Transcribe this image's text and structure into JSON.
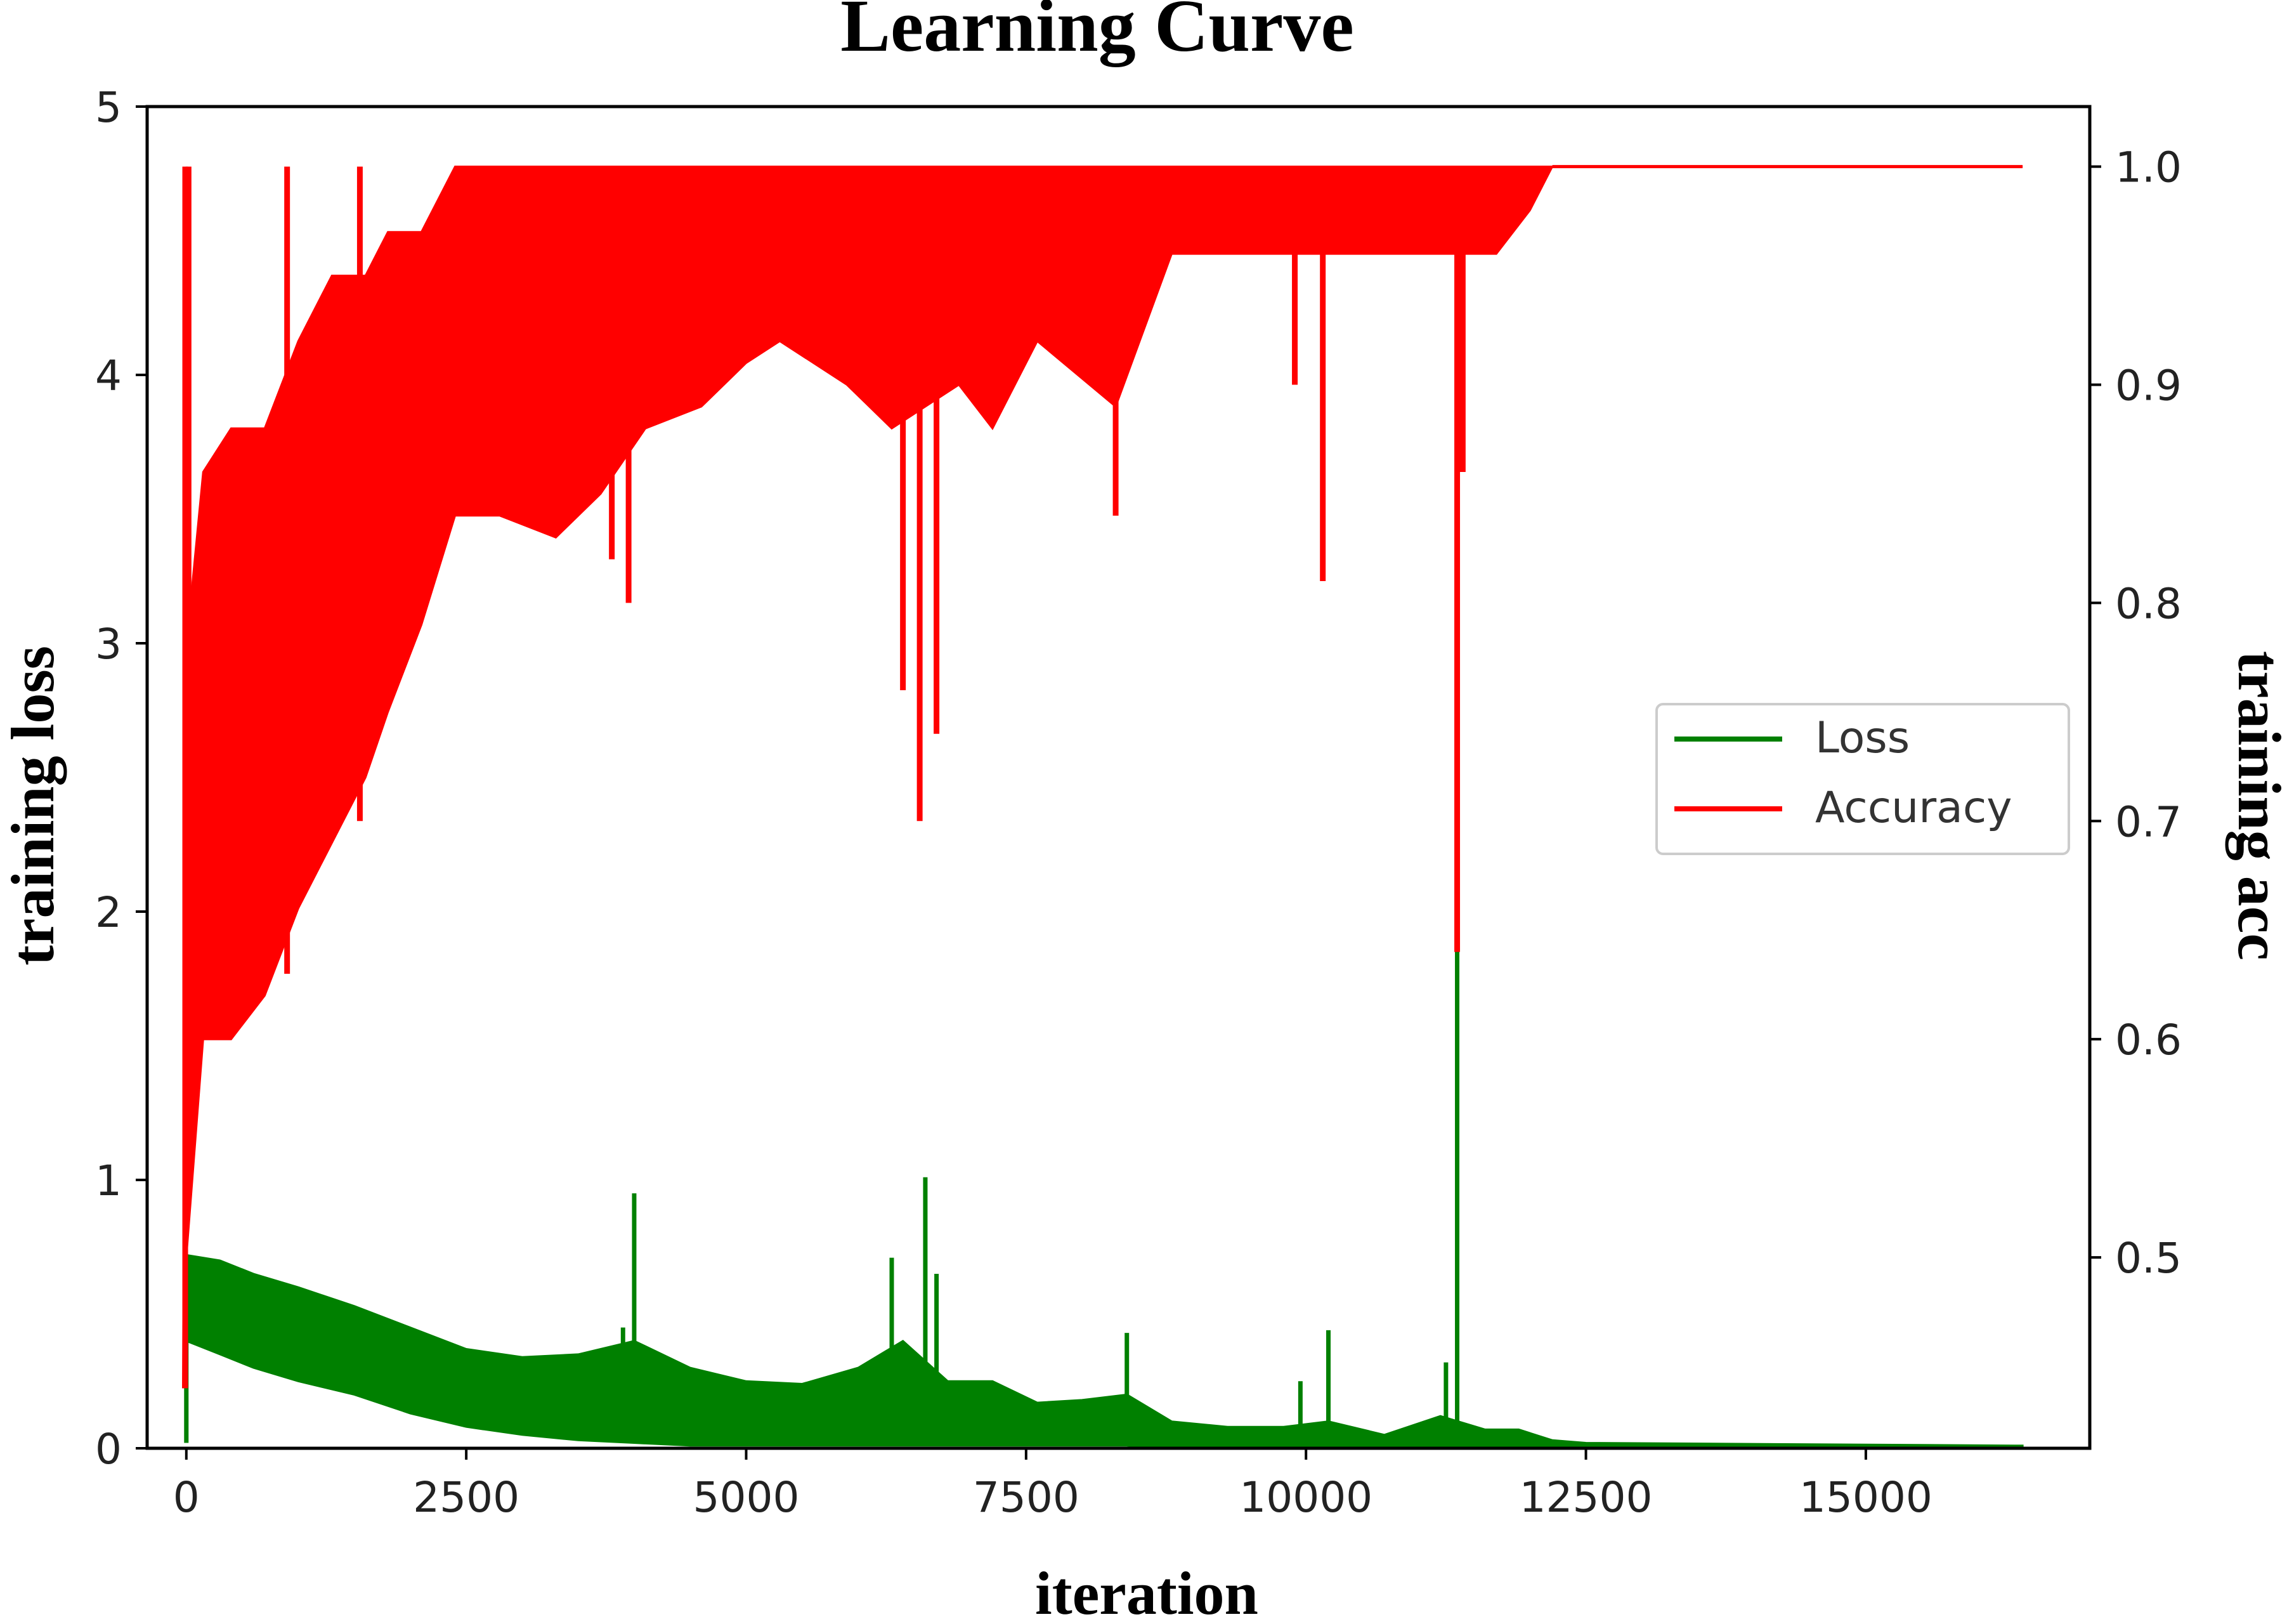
{
  "chart_data": {
    "type": "line",
    "title": "Learning Curve",
    "xlabel": "iteration",
    "ylabel": "training loss",
    "y2label": "training acc",
    "xlim": [
      -350,
      17000
    ],
    "ylim": [
      0,
      5
    ],
    "y2lim": [
      0.4125,
      1.0275
    ],
    "xticks": [
      0,
      2500,
      5000,
      7500,
      10000,
      12500,
      15000
    ],
    "xtick_labels": [
      "0",
      "2500",
      "5000",
      "7500",
      "10000",
      "12500",
      "15000"
    ],
    "yticks": [
      0,
      1,
      2,
      3,
      4,
      5
    ],
    "ytick_labels": [
      "0",
      "1",
      "2",
      "3",
      "4",
      "5"
    ],
    "y2ticks": [
      0.5,
      0.6,
      0.7,
      0.8,
      0.9,
      1.0
    ],
    "y2tick_labels": [
      "0.5",
      "0.6",
      "0.7",
      "0.8",
      "0.9",
      "1.0"
    ],
    "legend_position": "center-right",
    "series": [
      {
        "name": "Loss",
        "axis": "left",
        "color": "#008000",
        "band": [
          {
            "x": 0,
            "lo": 0.4,
            "hi": 0.72
          },
          {
            "x": 300,
            "lo": 0.35,
            "hi": 0.7
          },
          {
            "x": 600,
            "lo": 0.3,
            "hi": 0.65
          },
          {
            "x": 1000,
            "lo": 0.25,
            "hi": 0.6
          },
          {
            "x": 1500,
            "lo": 0.2,
            "hi": 0.53
          },
          {
            "x": 2000,
            "lo": 0.13,
            "hi": 0.45
          },
          {
            "x": 2500,
            "lo": 0.08,
            "hi": 0.37
          },
          {
            "x": 3000,
            "lo": 0.05,
            "hi": 0.34
          },
          {
            "x": 3500,
            "lo": 0.03,
            "hi": 0.35
          },
          {
            "x": 4000,
            "lo": 0.02,
            "hi": 0.4
          },
          {
            "x": 4500,
            "lo": 0.01,
            "hi": 0.3
          },
          {
            "x": 5000,
            "lo": 0.01,
            "hi": 0.25
          },
          {
            "x": 5500,
            "lo": 0.01,
            "hi": 0.24
          },
          {
            "x": 6000,
            "lo": 0.01,
            "hi": 0.3
          },
          {
            "x": 6400,
            "lo": 0.01,
            "hi": 0.4
          },
          {
            "x": 6800,
            "lo": 0.01,
            "hi": 0.25
          },
          {
            "x": 7200,
            "lo": 0.01,
            "hi": 0.25
          },
          {
            "x": 7600,
            "lo": 0.01,
            "hi": 0.17
          },
          {
            "x": 8000,
            "lo": 0.01,
            "hi": 0.18
          },
          {
            "x": 8400,
            "lo": 0.01,
            "hi": 0.2
          },
          {
            "x": 8800,
            "lo": 0.0,
            "hi": 0.1
          },
          {
            "x": 9300,
            "lo": 0.0,
            "hi": 0.08
          },
          {
            "x": 9800,
            "lo": 0.0,
            "hi": 0.08
          },
          {
            "x": 10200,
            "lo": 0.0,
            "hi": 0.1
          },
          {
            "x": 10700,
            "lo": 0.0,
            "hi": 0.05
          },
          {
            "x": 11200,
            "lo": 0.0,
            "hi": 0.12
          },
          {
            "x": 11600,
            "lo": 0.0,
            "hi": 0.07
          },
          {
            "x": 11900,
            "lo": 0.0,
            "hi": 0.07
          },
          {
            "x": 12200,
            "lo": 0.0,
            "hi": 0.03
          },
          {
            "x": 12500,
            "lo": 0.0,
            "hi": 0.02
          },
          {
            "x": 16400,
            "lo": 0.0,
            "hi": 0.01
          }
        ],
        "spikes": [
          {
            "x": 0,
            "y": 0.55
          },
          {
            "x": 3900,
            "y": 0.45
          },
          {
            "x": 4000,
            "y": 0.95
          },
          {
            "x": 6300,
            "y": 0.71
          },
          {
            "x": 6600,
            "y": 1.01
          },
          {
            "x": 6700,
            "y": 0.65
          },
          {
            "x": 8400,
            "y": 0.43
          },
          {
            "x": 9950,
            "y": 0.25
          },
          {
            "x": 10200,
            "y": 0.44
          },
          {
            "x": 11250,
            "y": 0.32
          },
          {
            "x": 11350,
            "y": 1.85
          }
        ]
      },
      {
        "name": "Accuracy",
        "axis": "right",
        "color": "#ff0000",
        "band": [
          {
            "x": -30,
            "lo": 0.44,
            "hi": 0.44
          },
          {
            "x": 0,
            "lo": 0.5,
            "hi": 0.78
          },
          {
            "x": 150,
            "lo": 0.6,
            "hi": 0.86
          },
          {
            "x": 400,
            "lo": 0.6,
            "hi": 0.88
          },
          {
            "x": 700,
            "lo": 0.62,
            "hi": 0.88
          },
          {
            "x": 1000,
            "lo": 0.66,
            "hi": 0.92
          },
          {
            "x": 1300,
            "lo": 0.69,
            "hi": 0.95
          },
          {
            "x": 1600,
            "lo": 0.72,
            "hi": 0.95
          },
          {
            "x": 1800,
            "lo": 0.75,
            "hi": 0.97
          },
          {
            "x": 2100,
            "lo": 0.79,
            "hi": 0.97
          },
          {
            "x": 2400,
            "lo": 0.84,
            "hi": 1.0
          },
          {
            "x": 2800,
            "lo": 0.84,
            "hi": 1.0
          },
          {
            "x": 3300,
            "lo": 0.83,
            "hi": 1.0
          },
          {
            "x": 3700,
            "lo": 0.85,
            "hi": 1.0
          },
          {
            "x": 4100,
            "lo": 0.88,
            "hi": 1.0
          },
          {
            "x": 4600,
            "lo": 0.89,
            "hi": 1.0
          },
          {
            "x": 5000,
            "lo": 0.91,
            "hi": 1.0
          },
          {
            "x": 5300,
            "lo": 0.92,
            "hi": 1.0
          },
          {
            "x": 5900,
            "lo": 0.9,
            "hi": 1.0
          },
          {
            "x": 6300,
            "lo": 0.88,
            "hi": 1.0
          },
          {
            "x": 6900,
            "lo": 0.9,
            "hi": 1.0
          },
          {
            "x": 7200,
            "lo": 0.88,
            "hi": 1.0
          },
          {
            "x": 7600,
            "lo": 0.92,
            "hi": 1.0
          },
          {
            "x": 8300,
            "lo": 0.89,
            "hi": 1.0
          },
          {
            "x": 8800,
            "lo": 0.96,
            "hi": 1.0
          },
          {
            "x": 10000,
            "lo": 0.96,
            "hi": 1.0
          },
          {
            "x": 11000,
            "lo": 0.96,
            "hi": 1.0
          },
          {
            "x": 11700,
            "lo": 0.96,
            "hi": 1.0
          },
          {
            "x": 12000,
            "lo": 0.98,
            "hi": 1.0
          },
          {
            "x": 12200,
            "lo": 1.0,
            "hi": 1.0
          },
          {
            "x": 16400,
            "lo": 1.0,
            "hi": 1.0
          }
        ],
        "dips": [
          {
            "x": -10,
            "y": 0.44
          },
          {
            "x": 20,
            "y": 0.58
          },
          {
            "x": 900,
            "y": 0.63
          },
          {
            "x": 1550,
            "y": 0.7
          },
          {
            "x": 3800,
            "y": 0.82
          },
          {
            "x": 3950,
            "y": 0.8
          },
          {
            "x": 6400,
            "y": 0.76
          },
          {
            "x": 6550,
            "y": 0.7
          },
          {
            "x": 6700,
            "y": 0.74
          },
          {
            "x": 8300,
            "y": 0.84
          },
          {
            "x": 9900,
            "y": 0.9
          },
          {
            "x": 10150,
            "y": 0.81
          },
          {
            "x": 11350,
            "y": 0.64
          },
          {
            "x": 11400,
            "y": 0.86
          }
        ]
      }
    ]
  }
}
